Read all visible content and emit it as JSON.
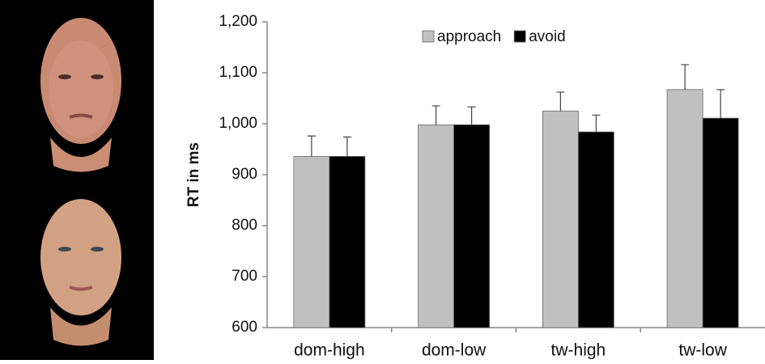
{
  "chart_data": {
    "type": "bar",
    "y_label": "RT in ms",
    "categories": [
      "dom-high",
      "dom-low",
      "tw-high",
      "tw-low"
    ],
    "series": [
      {
        "name": "approach",
        "color": "#c0c0c0",
        "values": [
          936,
          998,
          1025,
          1067
        ],
        "errors": [
          40,
          37,
          37,
          49
        ]
      },
      {
        "name": "avoid",
        "color": "#000000",
        "values": [
          936,
          998,
          984,
          1011
        ],
        "errors": [
          38,
          35,
          33,
          56
        ]
      }
    ],
    "ylim": [
      600,
      1200
    ],
    "yticks": [
      600,
      700,
      800,
      900,
      {
        "value": 1000,
        "label": "1,000"
      },
      {
        "value": 1100,
        "label": "1,100"
      },
      {
        "value": 1200,
        "label": "1,200"
      }
    ],
    "legend": "top"
  }
}
